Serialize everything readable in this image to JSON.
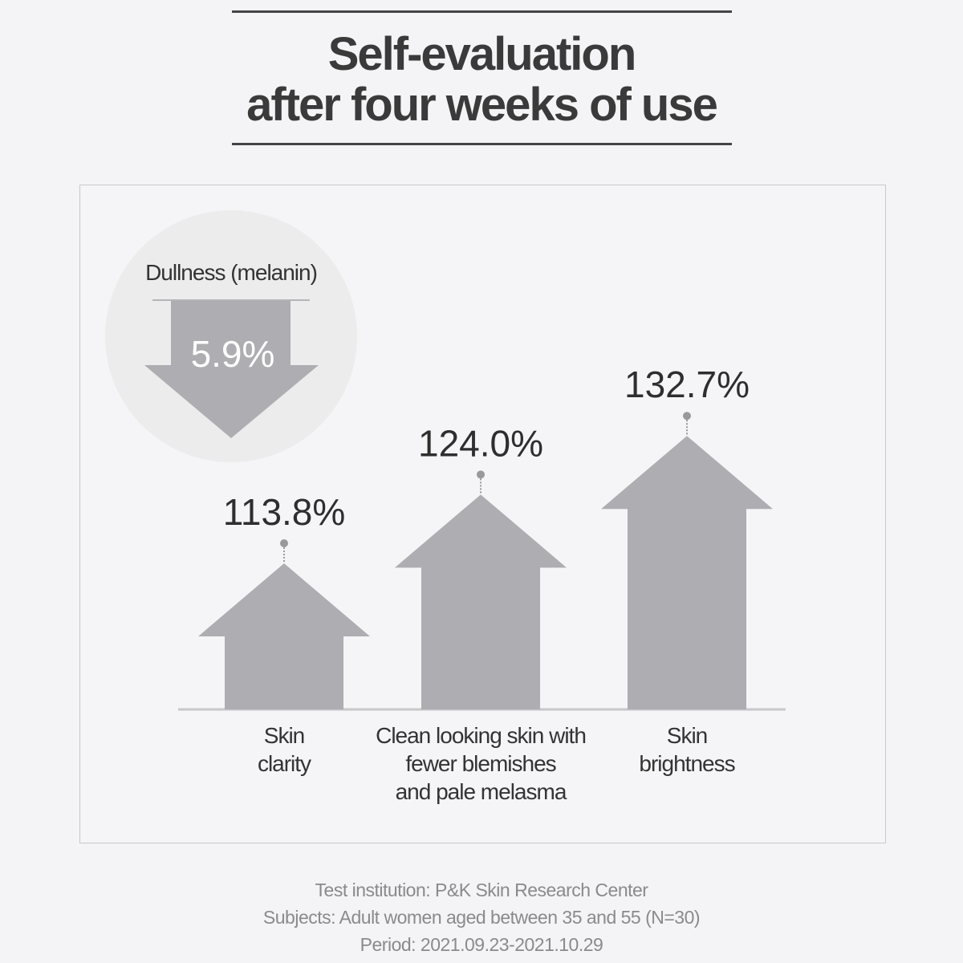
{
  "title": {
    "line1": "Self-evaluation",
    "line2": "after four weeks of use"
  },
  "chart_data": {
    "type": "bar",
    "title": "Self-evaluation after four weeks of use",
    "categories": [
      [
        "Skin",
        "clarity"
      ],
      [
        "Clean looking skin with",
        "fewer blemishes",
        "and pale melasma"
      ],
      [
        "Skin",
        "brightness"
      ]
    ],
    "values": [
      113.8,
      124.0,
      132.7
    ],
    "value_labels": [
      "113.8%",
      "124.0%",
      "132.7%"
    ],
    "unit": "%",
    "decrease": {
      "label": "Dullness (melanin)",
      "value": 5.9,
      "value_label": "5.9%"
    }
  },
  "colors": {
    "arrow": "#adadb2",
    "circle": "#ececed",
    "text": "#333333"
  },
  "footer": {
    "line1": "Test institution: P&K Skin Research Center",
    "line2": "Subjects: Adult women aged between 35 and 55 (N=30)",
    "line3": "Period: 2021.09.23-2021.10.29"
  }
}
